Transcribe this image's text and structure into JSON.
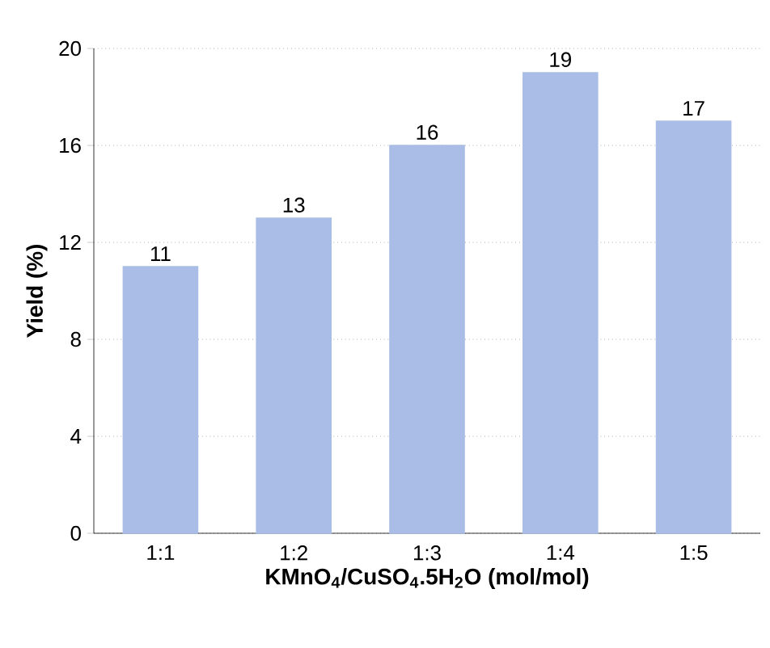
{
  "chart_data": {
    "type": "bar",
    "xlabel": "**KMnO$_{4}$/CuSO$_{4}$.5H$_{2}$O (mol/mol)**",
    "ylabel": "**Yield (%)**",
    "categories": [
      "1:1",
      "1:2",
      "1:3",
      "1:4",
      "1:5"
    ],
    "values": [
      11,
      13,
      16,
      19,
      17
    ],
    "color": "#a9bde6",
    "ylim": [
      0,
      20
    ],
    "yticks": [
      0,
      4,
      8,
      12,
      16,
      20
    ],
    "grid": "y",
    "data_labels": true
  }
}
